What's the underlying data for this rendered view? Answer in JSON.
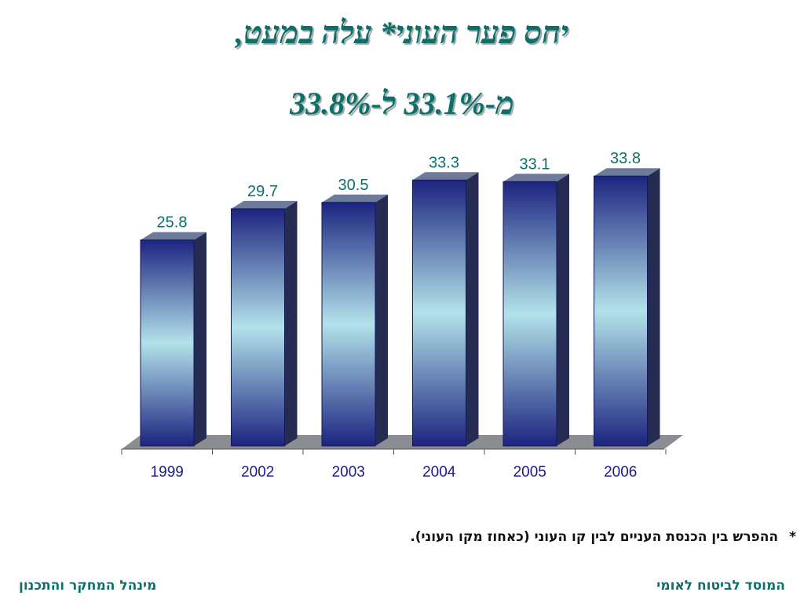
{
  "title_line1": "יחס פער העוני* עלה במעט,",
  "title_line2": "מ-33.1% ל-33.8%",
  "footnote": {
    "marker": "*",
    "text": "ההפרש בין הכנסת העניים לבין קו העוני (כאחוז מקו העוני)."
  },
  "footer": {
    "right": "המוסד לביטוח לאומי",
    "left": "מינהל המחקר והתכנון"
  },
  "chart_data": {
    "type": "bar",
    "categories": [
      "1999",
      "2002",
      "2003",
      "2004",
      "2005",
      "2006"
    ],
    "values": [
      25.8,
      29.7,
      30.5,
      33.3,
      33.1,
      33.8
    ],
    "value_labels": [
      "25.8",
      "29.7",
      "30.5",
      "33.3",
      "33.1",
      "33.8"
    ],
    "ylim": [
      0,
      35
    ],
    "grid": false,
    "legend": "none",
    "colors": {
      "bar_dark": "#1c2480",
      "bar_light": "#b3e2ea",
      "bar_side": "#252b52",
      "bar_top": "#6d7a9a",
      "label": "#0e6f6a",
      "axis_label": "#1a1a8c",
      "floor": "#8a8d92"
    }
  }
}
